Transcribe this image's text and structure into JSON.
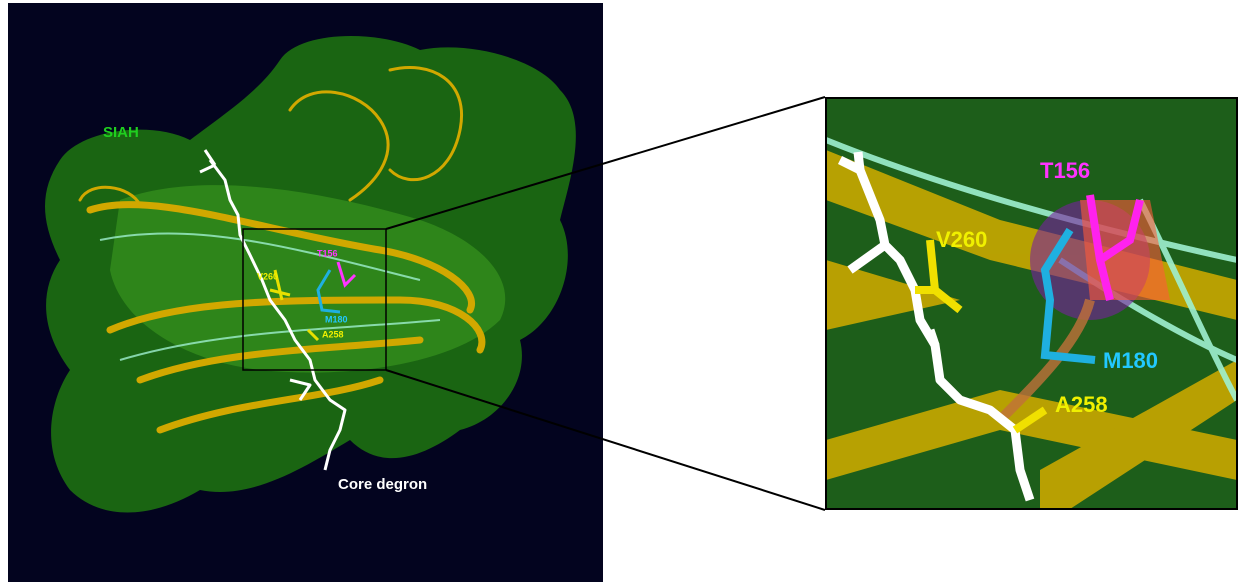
{
  "overview_panel": {
    "protein_label": "SIAH",
    "peptide_label": "Core degron",
    "residues": [
      "T156",
      "V260",
      "M180",
      "A258"
    ]
  },
  "zoom_panel": {
    "residues": [
      "T156",
      "V260",
      "M180",
      "A258"
    ]
  }
}
